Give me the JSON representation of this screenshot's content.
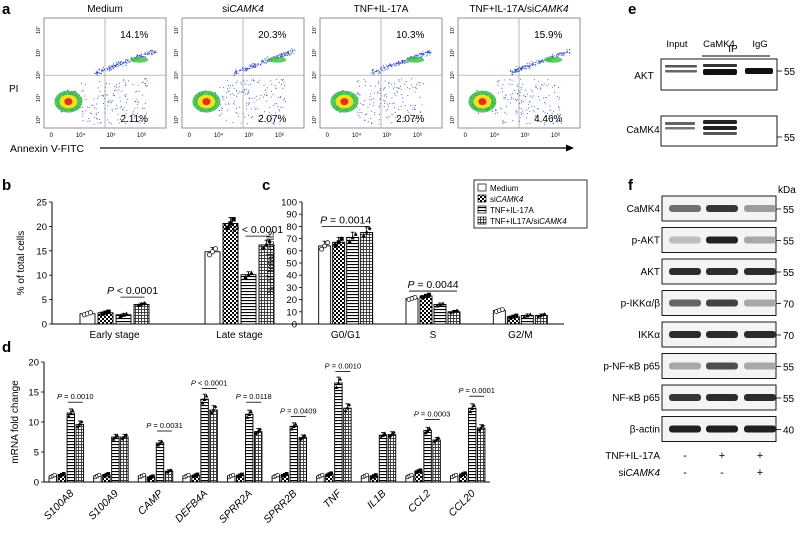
{
  "panel_letters": {
    "a": "a",
    "b": "b",
    "c": "c",
    "d": "d",
    "e": "e",
    "f": "f"
  },
  "flow": {
    "xlabel": "Annexin V-FITC",
    "ylabel": "PI",
    "panels": [
      {
        "title": "Medium",
        "q_ur": "14.1%",
        "q_lr": "2.11%"
      },
      {
        "title": "siCAMK4",
        "q_ur": "20.3%",
        "q_lr": "2.07%"
      },
      {
        "title": "TNF+IL-17A",
        "q_ur": "10.3%",
        "q_lr": "2.07%"
      },
      {
        "title": "TNF+IL-17A/siCAMK4",
        "q_ur": "15.9%",
        "q_lr": "4.46%"
      }
    ],
    "xticks": [
      "0",
      "10⁴",
      "10⁵",
      "10⁶"
    ],
    "yticks": [
      "10³",
      "10⁴",
      "10⁵",
      "10⁶",
      "10⁷"
    ]
  },
  "legend": [
    "Medium",
    "siCAMK4",
    "TNF+IL-17A",
    "TNF+IL17A/siCAMK4"
  ],
  "chart_data": [
    {
      "id": "b",
      "type": "bar",
      "ylabel": "% of total cells",
      "ylim": [
        0,
        25
      ],
      "yticks": [
        0,
        5,
        10,
        15,
        20,
        25
      ],
      "categories": [
        "Early stage",
        "Late stage"
      ],
      "series": [
        {
          "name": "Medium",
          "values": [
            2.1,
            14.8
          ]
        },
        {
          "name": "siCAMK4",
          "values": [
            2.3,
            20.6
          ]
        },
        {
          "name": "TNF+IL-17A",
          "values": [
            1.9,
            10.1
          ]
        },
        {
          "name": "TNF+IL17A/siCAMK4",
          "values": [
            4.0,
            16.2
          ]
        }
      ],
      "annotations": [
        {
          "text": "P < 0.0001",
          "category": 0,
          "from": 2,
          "to": 3,
          "y": 5.5
        },
        {
          "text": "P < 0.0001",
          "category": 1,
          "from": 2,
          "to": 3,
          "y": 18.0
        }
      ]
    },
    {
      "id": "c",
      "type": "bar",
      "ylabel": "% of total cells",
      "ylim": [
        0,
        100
      ],
      "yticks": [
        0,
        10,
        20,
        30,
        40,
        50,
        60,
        70,
        80,
        90,
        100
      ],
      "categories": [
        "G0/G1",
        "S",
        "G2/M"
      ],
      "series": [
        {
          "name": "Medium",
          "values": [
            64,
            21,
            11
          ]
        },
        {
          "name": "siCAMK4",
          "values": [
            67,
            23,
            6
          ]
        },
        {
          "name": "TNF+IL-17A",
          "values": [
            71,
            16,
            7
          ]
        },
        {
          "name": "TNF+IL17A/siCAMK4",
          "values": [
            75,
            10,
            7
          ]
        }
      ],
      "annotations": [
        {
          "text": "P = 0.0014",
          "category": 0,
          "from": 0,
          "to": 3,
          "y": 80
        },
        {
          "text": "P = 0.0044",
          "category": 1,
          "from": 0,
          "to": 3,
          "y": 27
        }
      ]
    },
    {
      "id": "d",
      "type": "bar",
      "ylabel": "mRNA fold change",
      "ylim": [
        0,
        20
      ],
      "yticks": [
        0,
        5,
        10,
        15,
        20
      ],
      "categories": [
        "S100A8",
        "S100A9",
        "CAMP",
        "DEFB4A",
        "SPRR2A",
        "SPRR2B",
        "TNF",
        "IL1B",
        "CCL2",
        "CCL20"
      ],
      "series": [
        {
          "name": "Medium",
          "values": [
            1.0,
            1.0,
            1.0,
            1.0,
            1.0,
            1.0,
            1.0,
            1.0,
            1.0,
            1.0
          ]
        },
        {
          "name": "siCAMK4",
          "values": [
            1.2,
            1.2,
            0.8,
            1.1,
            1.1,
            1.2,
            1.3,
            1.0,
            1.8,
            1.3
          ]
        },
        {
          "name": "TNF+IL-17A",
          "values": [
            11.5,
            7.5,
            6.5,
            13.8,
            11.3,
            9.3,
            16.5,
            7.8,
            8.6,
            12.3
          ]
        },
        {
          "name": "TNF+IL17A/siCAMK4",
          "values": [
            9.6,
            7.5,
            1.8,
            12.0,
            8.4,
            7.4,
            12.3,
            7.9,
            7.0,
            9.0
          ]
        }
      ],
      "annotations": [
        {
          "text": "P = 0.0010",
          "category": 0,
          "from": 2,
          "to": 3,
          "y": 13.3
        },
        {
          "text": "P = 0.0031",
          "category": 2,
          "from": 2,
          "to": 3,
          "y": 8.5
        },
        {
          "text": "P < 0.0001",
          "category": 3,
          "from": 2,
          "to": 3,
          "y": 15.6
        },
        {
          "text": "P = 0.0118",
          "category": 4,
          "from": 2,
          "to": 3,
          "y": 13.3
        },
        {
          "text": "P = 0.0409",
          "category": 5,
          "from": 2,
          "to": 3,
          "y": 10.9
        },
        {
          "text": "P = 0.0010",
          "category": 6,
          "from": 2,
          "to": 3,
          "y": 18.4
        },
        {
          "text": "P = 0.0003",
          "category": 8,
          "from": 2,
          "to": 3,
          "y": 10.4
        },
        {
          "text": "P = 0.0001",
          "category": 9,
          "from": 2,
          "to": 3,
          "y": 14.3
        }
      ]
    }
  ],
  "blot_e": {
    "ip_label": "IP",
    "lanes": [
      "Input",
      "CaMK4",
      "IgG"
    ],
    "rows": [
      {
        "label": "AKT",
        "marker": "55"
      },
      {
        "label": "CaMK4",
        "marker": "55"
      }
    ]
  },
  "blot_f": {
    "kda": "kDa",
    "rows": [
      {
        "label": "CaMK4",
        "marker": "55"
      },
      {
        "label": "p-AKT",
        "marker": "55"
      },
      {
        "label": "AKT",
        "marker": "55"
      },
      {
        "label": "p-IKKα/β",
        "marker": "70"
      },
      {
        "label": "IKKα",
        "marker": "70"
      },
      {
        "label": "p-NF-κB p65",
        "marker": "55"
      },
      {
        "label": "NF-κB p65",
        "marker": "55"
      },
      {
        "label": "β-actin",
        "marker": "40"
      }
    ],
    "treat_rows": [
      {
        "label": "TNF+IL-17A",
        "signs": [
          "-",
          "+",
          "+"
        ]
      },
      {
        "label": "siCAMK4",
        "signs": [
          "-",
          "-",
          "+"
        ]
      }
    ]
  },
  "colors": {
    "scatter": "#1f3fbf",
    "core_green": "#38c040",
    "core_yellow": "#f0e020",
    "core_red": "#e03020"
  }
}
